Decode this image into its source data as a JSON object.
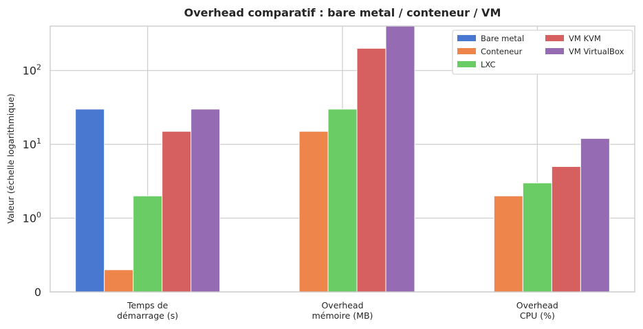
{
  "chart_data": {
    "type": "bar",
    "title": "Overhead comparatif : bare metal / conteneur / VM",
    "xlabel": "",
    "ylabel": "Valeur (échelle logarithmique)",
    "yscale": "symlog",
    "ylim": [
      0,
      400
    ],
    "yticks": [
      {
        "value": 0,
        "base": "0",
        "exp": ""
      },
      {
        "value": 1,
        "base": "10",
        "exp": "0"
      },
      {
        "value": 10,
        "base": "10",
        "exp": "1"
      },
      {
        "value": 100,
        "base": "10",
        "exp": "2"
      }
    ],
    "grid": true,
    "legend_position": "top-right",
    "categories": [
      [
        "Temps de",
        "démarrage (s)"
      ],
      [
        "Overhead",
        "mémoire (MB)"
      ],
      [
        "Overhead",
        "CPU (%)"
      ]
    ],
    "series": [
      {
        "name": "Bare metal",
        "color": "#4878d0",
        "values": [
          30,
          0,
          0
        ]
      },
      {
        "name": "Conteneur",
        "color": "#ee854a",
        "values": [
          0.3,
          15,
          2
        ]
      },
      {
        "name": "LXC",
        "color": "#6acc64",
        "values": [
          2,
          30,
          3
        ]
      },
      {
        "name": "VM KVM",
        "color": "#d65f5f",
        "values": [
          15,
          200,
          5
        ]
      },
      {
        "name": "VM VirtualBox",
        "color": "#956cb4",
        "values": [
          30,
          400,
          12
        ]
      }
    ]
  }
}
